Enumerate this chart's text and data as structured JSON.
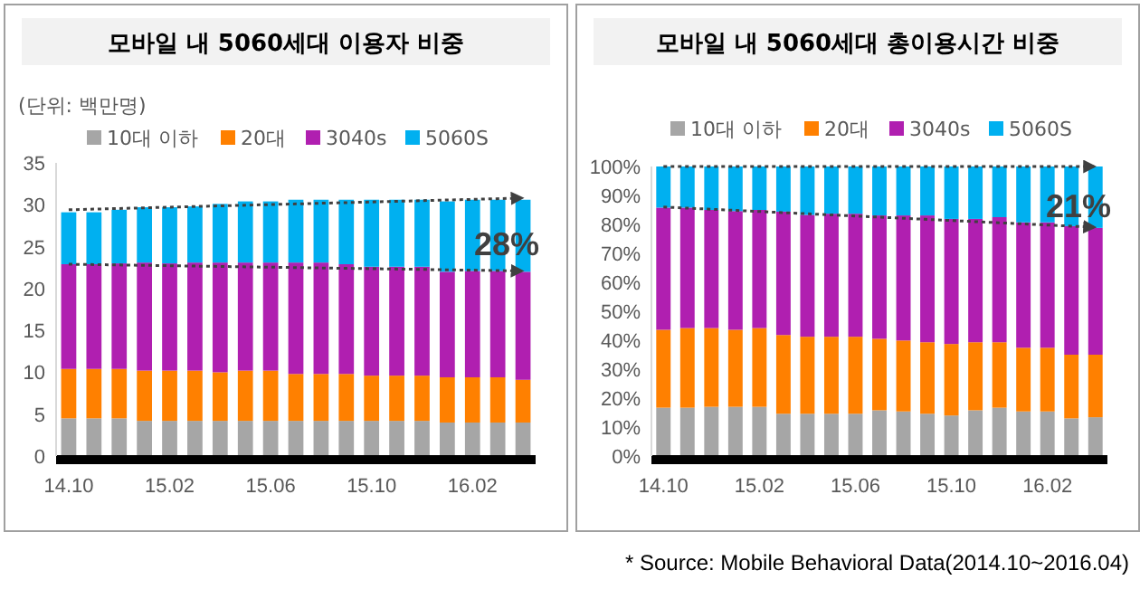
{
  "chart_data": [
    {
      "type": "bar",
      "title": "모바일 내 5060세대 이용자 비중",
      "ylabel": "(단위: 백만명)",
      "stacked": true,
      "legend": "top",
      "categories": [
        "14.10",
        null,
        null,
        null,
        "15.02",
        null,
        null,
        null,
        "15.06",
        null,
        null,
        null,
        "15.10",
        null,
        null,
        null,
        "16.02",
        null,
        null
      ],
      "ylim": [
        0,
        35
      ],
      "yticks": [
        0,
        5,
        10,
        15,
        20,
        25,
        30,
        35
      ],
      "series": [
        {
          "name": "10대 이하",
          "color": "#a6a6a6",
          "values": [
            4.5,
            4.5,
            4.5,
            4.2,
            4.2,
            4.2,
            4.2,
            4.2,
            4.2,
            4.2,
            4.2,
            4.2,
            4.2,
            4.2,
            4.2,
            4.0,
            4.0,
            4.0,
            4.0
          ]
        },
        {
          "name": "20대",
          "color": "#ff8000",
          "values": [
            5.9,
            5.9,
            5.9,
            6.0,
            6.0,
            6.0,
            5.8,
            6.0,
            6.0,
            5.6,
            5.6,
            5.6,
            5.4,
            5.4,
            5.4,
            5.4,
            5.4,
            5.4,
            5.1
          ]
        },
        {
          "name": "3040s",
          "color": "#b01fb0",
          "values": [
            12.5,
            12.5,
            12.6,
            12.9,
            12.8,
            12.9,
            13.1,
            12.9,
            12.9,
            13.3,
            13.3,
            13.1,
            13.0,
            13.0,
            13.0,
            12.6,
            12.7,
            12.7,
            12.9
          ]
        },
        {
          "name": "5060S",
          "color": "#00b0f0",
          "values": [
            6.2,
            6.2,
            6.4,
            6.6,
            6.7,
            6.7,
            7.0,
            7.3,
            7.3,
            7.5,
            7.5,
            7.7,
            8.0,
            8.0,
            8.0,
            8.4,
            8.5,
            8.5,
            8.6
          ]
        },
        {
          "type": "line",
          "color": "#404040",
          "line_style": "dotted",
          "values": [
            29.4,
            null,
            null,
            null,
            null,
            null,
            null,
            null,
            null,
            null,
            null,
            null,
            null,
            null,
            null,
            null,
            null,
            null,
            30.8
          ]
        },
        {
          "type": "line",
          "color": "#404040",
          "line_style": "dotted",
          "values": [
            22.9,
            null,
            null,
            null,
            null,
            null,
            null,
            null,
            null,
            null,
            null,
            null,
            null,
            null,
            null,
            null,
            null,
            null,
            22.1
          ]
        }
      ],
      "annotations": [
        {
          "text": "28%",
          "y": 25.5
        }
      ]
    },
    {
      "type": "bar",
      "title": "모바일 내 5060세대 총이용시간 비중",
      "stacked": true,
      "legend": "top",
      "categories": [
        "14.10",
        null,
        null,
        null,
        "15.02",
        null,
        null,
        null,
        "15.06",
        null,
        null,
        null,
        "15.10",
        null,
        null,
        null,
        "16.02",
        null,
        null
      ],
      "ylim": [
        0,
        100
      ],
      "yticks": [
        {
          "value": 0,
          "label": "0%"
        },
        {
          "value": 10,
          "label": "10%"
        },
        {
          "value": 20,
          "label": "20%"
        },
        {
          "value": 30,
          "label": "30%"
        },
        {
          "value": 40,
          "label": "40%"
        },
        {
          "value": 50,
          "label": "50%"
        },
        {
          "value": 60,
          "label": "60%"
        },
        {
          "value": 70,
          "label": "70%"
        },
        {
          "value": 80,
          "label": "80%"
        },
        {
          "value": 90,
          "label": "90%"
        },
        {
          "value": 100,
          "label": "100%"
        }
      ],
      "series": [
        {
          "name": "10대 이하",
          "color": "#a6a6a6",
          "values": [
            16.7,
            16.7,
            17.0,
            17.0,
            17.0,
            14.6,
            14.6,
            14.6,
            14.6,
            15.8,
            15.4,
            14.6,
            14.0,
            15.8,
            16.7,
            15.4,
            15.4,
            13.0,
            13.4
          ]
        },
        {
          "name": "20대",
          "color": "#ff8000",
          "values": [
            26.9,
            27.5,
            27.2,
            26.6,
            27.2,
            27.2,
            26.6,
            26.6,
            26.6,
            24.7,
            24.5,
            24.7,
            24.7,
            23.5,
            22.6,
            22.0,
            22.0,
            22.0,
            21.6
          ]
        },
        {
          "name": "3040s",
          "color": "#b01fb0",
          "values": [
            42.2,
            41.6,
            40.8,
            41.0,
            40.8,
            42.6,
            42.1,
            42.5,
            42.5,
            42.6,
            43.2,
            43.8,
            43.2,
            42.6,
            43.2,
            43.3,
            43.3,
            44.4,
            43.8
          ]
        },
        {
          "name": "5060S",
          "color": "#00b0f0",
          "values": [
            14.2,
            14.2,
            15.0,
            15.4,
            15.0,
            15.6,
            16.7,
            16.3,
            16.3,
            16.9,
            16.9,
            16.9,
            18.1,
            18.1,
            17.5,
            19.3,
            19.3,
            20.6,
            21.2
          ]
        },
        {
          "type": "line",
          "color": "#404040",
          "line_style": "dotted",
          "values": [
            100,
            null,
            null,
            null,
            null,
            null,
            null,
            null,
            null,
            null,
            null,
            null,
            null,
            null,
            null,
            null,
            null,
            null,
            100
          ]
        },
        {
          "type": "line",
          "color": "#404040",
          "line_style": "dotted",
          "values": [
            86,
            null,
            null,
            null,
            null,
            null,
            null,
            null,
            null,
            null,
            null,
            null,
            null,
            null,
            null,
            null,
            null,
            null,
            79
          ]
        }
      ],
      "annotations": [
        {
          "text": "21%",
          "y": 87
        },
        "* Source: Mobile Behavioral Data(2014.10~2016.04)"
      ]
    }
  ]
}
